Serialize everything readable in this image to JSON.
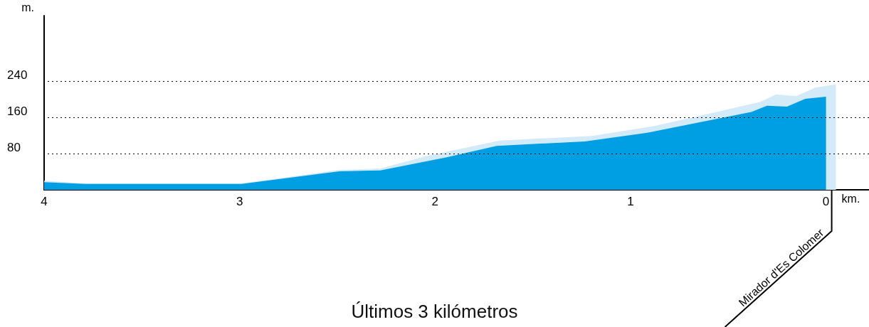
{
  "chart_data": {
    "type": "area",
    "title": "Últimos 3 kilómetros",
    "xlabel": "km.",
    "ylabel": "m.",
    "xlim": [
      4,
      -0.22
    ],
    "xticks": [
      4,
      3,
      2,
      1,
      0
    ],
    "ylim": [
      0,
      385
    ],
    "yticks": [
      80,
      160,
      240
    ],
    "grid": "y",
    "marker": "none",
    "series": [
      {
        "color": "#d3eaf9",
        "x": [
          4,
          3.79,
          2.99,
          2.49,
          2.28,
          2.04,
          1.67,
          1.197,
          0.877,
          0.338,
          0.255,
          0.153,
          0.055,
          -0.051,
          -0.051
        ],
        "values": [
          20,
          14,
          14,
          44,
          47,
          75,
          109,
          119,
          141,
          194,
          211,
          207,
          226,
          233,
          0
        ]
      },
      {
        "color": "#009fe3",
        "x": [
          4,
          3.79,
          2.99,
          2.49,
          2.28,
          1.94,
          1.685,
          1.234,
          0.914,
          0.382,
          0.302,
          0.2,
          0.106,
          0,
          0
        ],
        "values": [
          17,
          13,
          13,
          41,
          43,
          72,
          97,
          107,
          126,
          172,
          186,
          184,
          201,
          206,
          0
        ]
      }
    ],
    "annotations": [
      "Mirador d'Es Colomer"
    ]
  }
}
